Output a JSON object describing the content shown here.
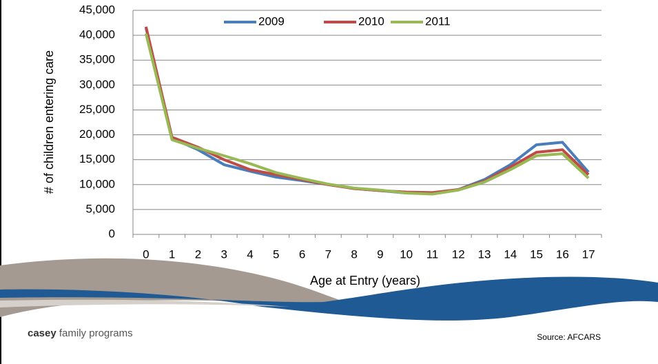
{
  "chart_data": {
    "type": "line",
    "x_label": "Age at Entry (years)",
    "y_label": "# of children entering care",
    "categories": [
      "0",
      "1",
      "2",
      "3",
      "4",
      "5",
      "6",
      "7",
      "8",
      "9",
      "10",
      "11",
      "12",
      "13",
      "14",
      "15",
      "16",
      "17"
    ],
    "series": [
      {
        "name": "2009",
        "color": "#4a7ebb",
        "values": [
          41500,
          19300,
          17000,
          14000,
          12700,
          11500,
          10800,
          10000,
          9200,
          8800,
          8300,
          8200,
          9000,
          11000,
          14000,
          18000,
          18500,
          12500
        ]
      },
      {
        "name": "2010",
        "color": "#be4b48",
        "values": [
          41700,
          19500,
          17500,
          15000,
          13000,
          12000,
          11000,
          10000,
          9200,
          8800,
          8500,
          8400,
          9000,
          10700,
          13500,
          16500,
          17000,
          12000
        ]
      },
      {
        "name": "2011",
        "color": "#98b954",
        "values": [
          40300,
          19000,
          17300,
          15800,
          14200,
          12400,
          11200,
          10100,
          9300,
          8900,
          8300,
          8100,
          8900,
          10500,
          13000,
          15800,
          16200,
          11300
        ]
      }
    ],
    "ylim": [
      0,
      45000
    ],
    "yticks": [
      0,
      {
        "value": 5000,
        "label": "5,000"
      },
      {
        "value": 10000,
        "label": "10,000"
      },
      {
        "value": 15000,
        "label": "15,000"
      },
      {
        "value": 20000,
        "label": "20,000"
      },
      {
        "value": 25000,
        "label": "25,000"
      },
      {
        "value": 30000,
        "label": "30,000"
      },
      {
        "value": 35000,
        "label": "35,000"
      },
      {
        "value": 40000,
        "label": "40,000"
      },
      {
        "value": 45000,
        "label": "45,000"
      }
    ],
    "grid": true,
    "legend": "top"
  },
  "footer": {
    "logo_bold": "casey",
    "logo_rest": "family programs",
    "source": "Source: AFCARS"
  }
}
